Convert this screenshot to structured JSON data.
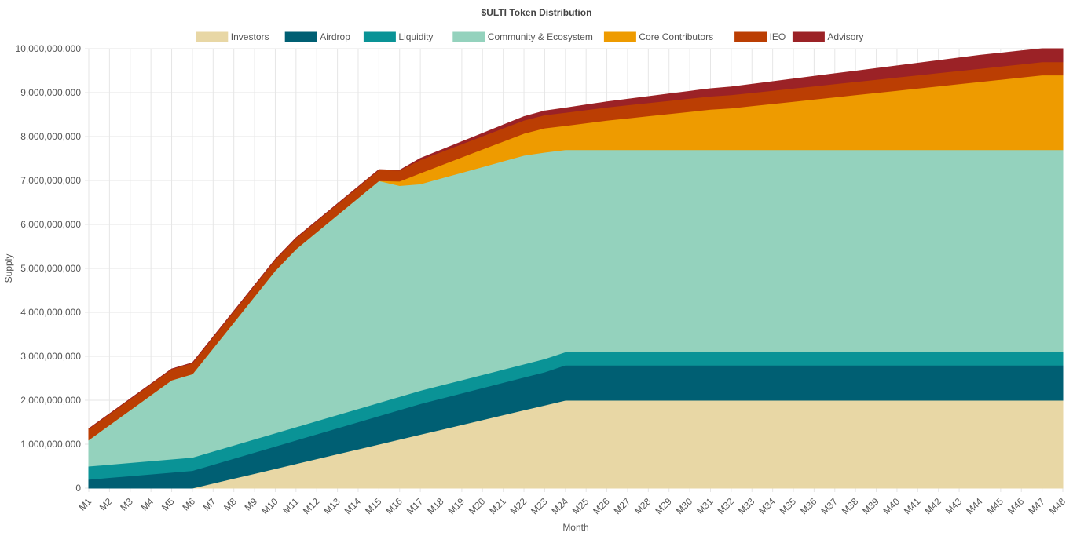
{
  "chart_data": {
    "type": "area",
    "stacked": true,
    "title": "$ULTI Token Distribution",
    "xlabel": "Month",
    "ylabel": "Supply",
    "ylim": [
      0,
      10000000000
    ],
    "yticks": [
      0,
      1000000000,
      2000000000,
      3000000000,
      4000000000,
      5000000000,
      6000000000,
      7000000000,
      8000000000,
      9000000000,
      10000000000
    ],
    "ytick_labels": [
      "0",
      "1,000,000,000",
      "2,000,000,000",
      "3,000,000,000",
      "4,000,000,000",
      "5,000,000,000",
      "6,000,000,000",
      "7,000,000,000",
      "8,000,000,000",
      "9,000,000,000",
      "10,000,000,000"
    ],
    "grid": true,
    "legend_position": "top",
    "categories": [
      "M1",
      "M2",
      "M3",
      "M4",
      "M5",
      "M6",
      "M7",
      "M8",
      "M9",
      "M10",
      "M11",
      "M12",
      "M13",
      "M14",
      "M15",
      "M16",
      "M17",
      "M18",
      "M19",
      "M20",
      "M21",
      "M22",
      "M23",
      "M24",
      "M25",
      "M26",
      "M27",
      "M28",
      "M29",
      "M30",
      "M31",
      "M32",
      "M33",
      "M34",
      "M35",
      "M36",
      "M37",
      "M38",
      "M39",
      "M40",
      "M41",
      "M42",
      "M43",
      "M44",
      "M45",
      "M46",
      "M47",
      "M48"
    ],
    "series": [
      {
        "name": "Investors",
        "color": "#e8d7a5",
        "values": [
          0,
          0,
          0,
          0,
          0,
          0,
          111111111,
          222222222,
          333333333,
          444444444,
          555555556,
          666666667,
          777777778,
          888888889,
          1000000000,
          1111111111,
          1222222222,
          1333333333,
          1444444444,
          1555555556,
          1666666667,
          1777777778,
          1888888889,
          2000000000,
          2000000000,
          2000000000,
          2000000000,
          2000000000,
          2000000000,
          2000000000,
          2000000000,
          2000000000,
          2000000000,
          2000000000,
          2000000000,
          2000000000,
          2000000000,
          2000000000,
          2000000000,
          2000000000,
          2000000000,
          2000000000,
          2000000000,
          2000000000,
          2000000000,
          2000000000,
          2000000000,
          2000000000
        ]
      },
      {
        "name": "Airdrop",
        "color": "#005f73",
        "values": [
          200000000,
          240000000,
          280000000,
          320000000,
          360000000,
          400000000,
          427273000,
          454545000,
          481818000,
          509091000,
          536364000,
          563636000,
          590909000,
          618182000,
          645455000,
          672727000,
          700000000,
          709091000,
          718182000,
          727273000,
          736364000,
          745455000,
          754545000,
          800000000,
          800000000,
          800000000,
          800000000,
          800000000,
          800000000,
          800000000,
          800000000,
          800000000,
          800000000,
          800000000,
          800000000,
          800000000,
          800000000,
          800000000,
          800000000,
          800000000,
          800000000,
          800000000,
          800000000,
          800000000,
          800000000,
          800000000,
          800000000,
          800000000
        ]
      },
      {
        "name": "Liquidity",
        "color": "#0a9396",
        "values": [
          300000000,
          300000000,
          300000000,
          300000000,
          300000000,
          300000000,
          300000000,
          300000000,
          300000000,
          300000000,
          300000000,
          300000000,
          300000000,
          300000000,
          300000000,
          300000000,
          300000000,
          300000000,
          300000000,
          300000000,
          300000000,
          300000000,
          300000000,
          300000000,
          300000000,
          300000000,
          300000000,
          300000000,
          300000000,
          300000000,
          300000000,
          300000000,
          300000000,
          300000000,
          300000000,
          300000000,
          300000000,
          300000000,
          300000000,
          300000000,
          300000000,
          300000000,
          300000000,
          300000000,
          300000000,
          300000000,
          300000000,
          300000000
        ]
      },
      {
        "name": "Community & Ecosystem",
        "color": "#94d2bd",
        "values": [
          600000000,
          900000000,
          1200000000,
          1500000000,
          1800000000,
          1900000000,
          2350000000,
          2800000000,
          3250000000,
          3700000000,
          4050000000,
          4300000000,
          4550000000,
          4800000000,
          5050000000,
          4800000000,
          4700000000,
          4710000000,
          4720000000,
          4730000000,
          4740000000,
          4750000000,
          4700000000,
          4600000000,
          4600000000,
          4600000000,
          4600000000,
          4600000000,
          4600000000,
          4600000000,
          4600000000,
          4600000000,
          4600000000,
          4600000000,
          4600000000,
          4600000000,
          4600000000,
          4600000000,
          4600000000,
          4600000000,
          4600000000,
          4600000000,
          4600000000,
          4600000000,
          4600000000,
          4600000000,
          4600000000,
          4600000000
        ]
      },
      {
        "name": "Core Contributors",
        "color": "#ee9b00",
        "values": [
          0,
          0,
          0,
          0,
          0,
          0,
          0,
          0,
          0,
          0,
          0,
          0,
          0,
          0,
          0,
          100000000,
          250000000,
          300000000,
          350000000,
          400000000,
          450000000,
          500000000,
          550000000,
          550000000,
          610000000,
          670000000,
          720000000,
          770000000,
          820000000,
          870000000,
          920000000,
          950000000,
          1000000000,
          1050000000,
          1100000000,
          1150000000,
          1200000000,
          1250000000,
          1300000000,
          1350000000,
          1400000000,
          1450000000,
          1500000000,
          1550000000,
          1600000000,
          1650000000,
          1700000000,
          1700000000
        ]
      },
      {
        "name": "IEO",
        "color": "#bb3e03",
        "values": [
          250000000,
          250000000,
          250000000,
          250000000,
          250000000,
          250000000,
          250000000,
          250000000,
          250000000,
          250000000,
          250000000,
          250000000,
          250000000,
          250000000,
          250000000,
          250000000,
          300000000,
          300000000,
          300000000,
          300000000,
          300000000,
          300000000,
          300000000,
          300000000,
          300000000,
          300000000,
          300000000,
          300000000,
          300000000,
          300000000,
          300000000,
          300000000,
          300000000,
          300000000,
          300000000,
          300000000,
          300000000,
          300000000,
          300000000,
          300000000,
          300000000,
          300000000,
          300000000,
          300000000,
          300000000,
          300000000,
          300000000,
          300000000
        ]
      },
      {
        "name": "Advisory",
        "color": "#9b2226",
        "values": [
          0,
          0,
          0,
          0,
          0,
          0,
          0,
          0,
          0,
          0,
          0,
          0,
          0,
          0,
          0,
          0,
          30000000,
          40000000,
          50000000,
          60000000,
          70000000,
          80000000,
          90000000,
          100000000,
          110000000,
          120000000,
          130000000,
          140000000,
          150000000,
          160000000,
          170000000,
          180000000,
          190000000,
          200000000,
          210000000,
          220000000,
          230000000,
          240000000,
          250000000,
          260000000,
          270000000,
          280000000,
          290000000,
          300000000,
          300000000,
          300000000,
          300000000,
          300000000
        ]
      }
    ]
  }
}
